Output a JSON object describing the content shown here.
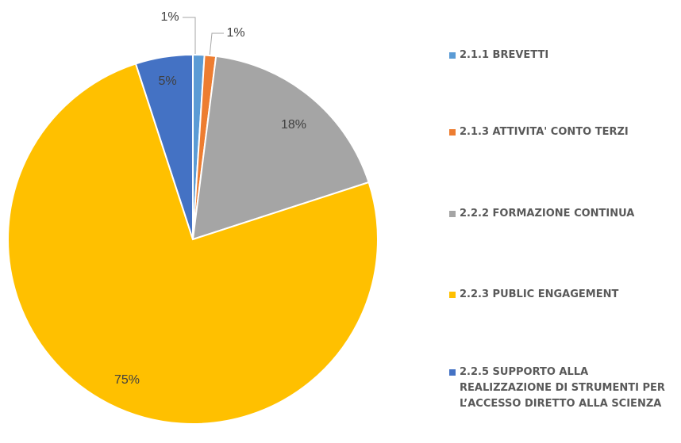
{
  "chart_data": {
    "type": "pie",
    "categories": [
      "2.1.1 BREVETTI",
      "2.1.3 ATTIVITA' CONTO TERZI",
      "2.2.2 FORMAZIONE CONTINUA",
      "2.2.3 PUBLIC ENGAGEMENT",
      "2.2.5 SUPPORTO ALLA REALIZZAZIONE DI STRUMENTI PER L’ACCESSO DIRETTO ALLA SCIENZA"
    ],
    "values": [
      1,
      1,
      18,
      75,
      5
    ],
    "value_labels": [
      "1%",
      "1%",
      "18%",
      "75%",
      "5%"
    ],
    "colors": [
      "#5b9bd5",
      "#ed7d31",
      "#a5a5a5",
      "#ffc000",
      "#4472c4"
    ],
    "legend": "right"
  }
}
